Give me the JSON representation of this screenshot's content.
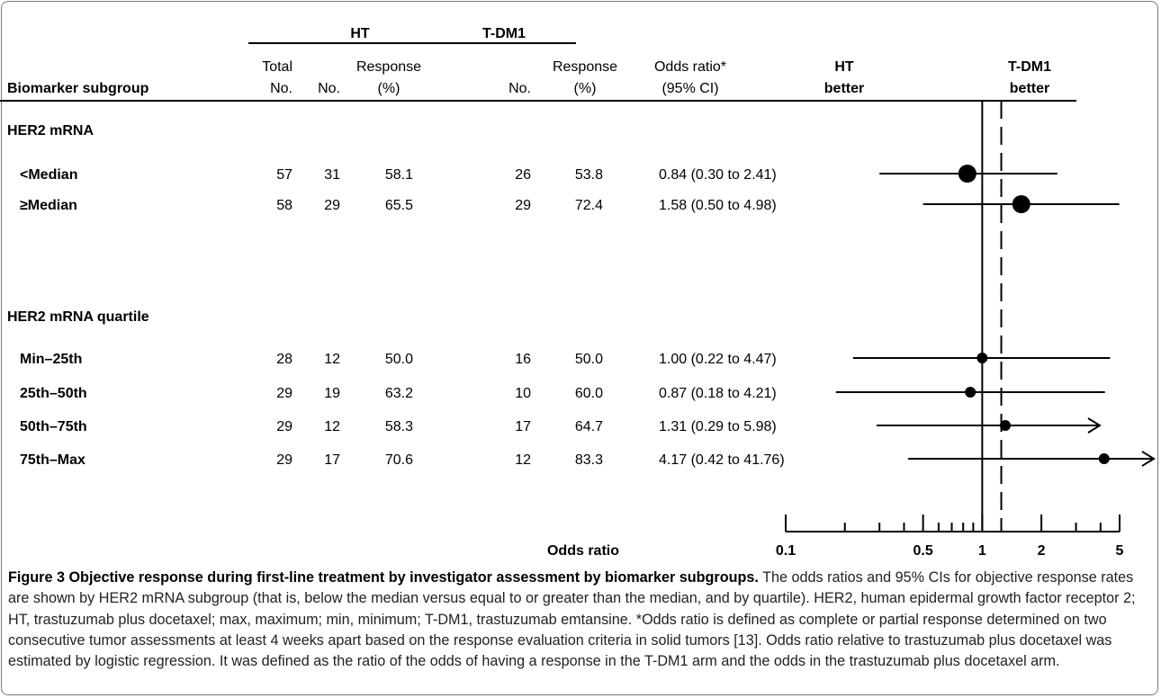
{
  "columns": {
    "subgroup": "Biomarker subgroup",
    "total": [
      "Total",
      "No."
    ],
    "ht_group": "HT",
    "tdm1_group": "T-DM1",
    "no": "No.",
    "response": [
      "Response",
      "(%)"
    ],
    "odds": [
      "Odds ratio*",
      "(95% CI)"
    ],
    "ht_better": [
      "HT",
      "better"
    ],
    "tdm1_better": [
      "T-DM1",
      "better"
    ]
  },
  "groups": [
    {
      "label": "HER2 mRNA",
      "rows": [
        {
          "label": "<Median",
          "total": "57",
          "ht_no": "31",
          "ht_resp": "58.1",
          "tdm1_no": "26",
          "tdm1_resp": "53.8",
          "or_text": "0.84 (0.30 to 2.41)",
          "or": 0.84,
          "lo": 0.3,
          "hi": 2.41,
          "marker": "large"
        },
        {
          "label": "≥Median",
          "total": "58",
          "ht_no": "29",
          "ht_resp": "65.5",
          "tdm1_no": "29",
          "tdm1_resp": "72.4",
          "or_text": "1.58 (0.50 to 4.98)",
          "or": 1.58,
          "lo": 0.5,
          "hi": 4.98,
          "marker": "large"
        }
      ]
    },
    {
      "label": "HER2 mRNA quartile",
      "rows": [
        {
          "label": "Min–25th",
          "total": "28",
          "ht_no": "12",
          "ht_resp": "50.0",
          "tdm1_no": "16",
          "tdm1_resp": "50.0",
          "or_text": "1.00 (0.22 to 4.47)",
          "or": 1.0,
          "lo": 0.22,
          "hi": 4.47,
          "marker": "small"
        },
        {
          "label": "25th–50th",
          "total": "29",
          "ht_no": "19",
          "ht_resp": "63.2",
          "tdm1_no": "10",
          "tdm1_resp": "60.0",
          "or_text": "0.87 (0.18 to 4.21)",
          "or": 0.87,
          "lo": 0.18,
          "hi": 4.21,
          "marker": "small"
        },
        {
          "label": "50th–75th",
          "total": "29",
          "ht_no": "12",
          "ht_resp": "58.3",
          "tdm1_no": "17",
          "tdm1_resp": "64.7",
          "or_text": "1.31 (0.29 to 5.98)",
          "or": 1.31,
          "lo": 0.29,
          "hi": 5.98,
          "marker": "small"
        },
        {
          "label": "75th–Max",
          "total": "29",
          "ht_no": "17",
          "ht_resp": "70.6",
          "tdm1_no": "12",
          "tdm1_resp": "83.3",
          "or_text": "4.17 (0.42 to 41.76)",
          "or": 4.17,
          "lo": 0.42,
          "hi": 41.76,
          "marker": "small"
        }
      ]
    }
  ],
  "chart_data": {
    "type": "forest",
    "xlabel": "Odds ratio",
    "x_scale": "log",
    "xlim": [
      0.1,
      5
    ],
    "x_tick_labels": [
      "0.1",
      "0.5",
      "1",
      "2",
      "5"
    ],
    "x_ticks_labeled": [
      0.1,
      0.5,
      1,
      2,
      5
    ],
    "x_ticks_minor": [
      0.2,
      0.3,
      0.4,
      0.6,
      0.7,
      0.8,
      0.9,
      3,
      4
    ],
    "reference_line": 1,
    "overall_line_dashed": 1.25,
    "legend_left": "HT better",
    "legend_right": "T-DM1 better",
    "series": [
      {
        "name": "<Median",
        "or": 0.84,
        "lo": 0.3,
        "hi": 2.41
      },
      {
        "name": "≥Median",
        "or": 1.58,
        "lo": 0.5,
        "hi": 4.98
      },
      {
        "name": "Min–25th",
        "or": 1.0,
        "lo": 0.22,
        "hi": 4.47
      },
      {
        "name": "25th–50th",
        "or": 0.87,
        "lo": 0.18,
        "hi": 4.21
      },
      {
        "name": "50th–75th",
        "or": 1.31,
        "lo": 0.29,
        "hi": 5.98
      },
      {
        "name": "75th–Max",
        "or": 4.17,
        "lo": 0.42,
        "hi": 41.76
      }
    ]
  },
  "caption": {
    "title": "Figure 3 Objective response during first-line treatment by investigator assessment by biomarker subgroups.",
    "body": " The odds ratios and 95% CIs for objective response rates are shown by HER2 mRNA subgroup (that is, below the median versus equal to or greater than the median, and by quartile). HER2, human epidermal growth factor receptor 2; HT, trastuzumab plus docetaxel; max, maximum; min, minimum; T-DM1, trastuzumab emtansine. *Odds ratio is defined as complete or partial response determined on two consecutive tumor assessments at least 4 weeks apart based on the response evaluation criteria in solid tumors [13]. Odds ratio relative to trastuzumab plus docetaxel was estimated by logistic regression. It was defined as the ratio of the odds of having a response in the T-DM1 arm and the odds in the trastuzumab plus docetaxel arm."
  }
}
